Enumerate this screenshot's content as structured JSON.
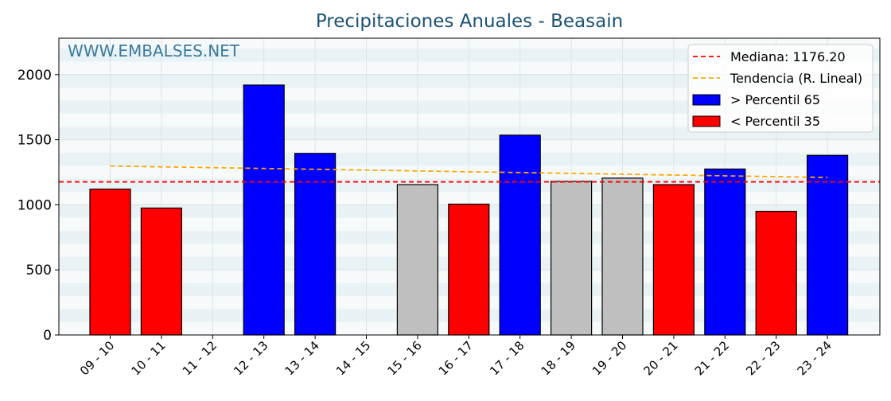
{
  "chart_data": {
    "type": "bar",
    "title": "Precipitaciones Anuales - Beasain",
    "watermark": "WWW.EMBALSES.NET",
    "xlabel": "",
    "ylabel": "",
    "ylim": [
      0,
      2280
    ],
    "yticks": [
      0,
      500,
      1000,
      1500,
      2000
    ],
    "grid": true,
    "legend_position": "top-right",
    "categories": [
      "09 - 10",
      "10 - 11",
      "11 - 12",
      "12 - 13",
      "13 - 14",
      "14 - 15",
      "15 - 16",
      "16 - 17",
      "17 - 18",
      "18 - 19",
      "19 - 20",
      "20 - 21",
      "21 - 22",
      "22 - 23",
      "23 - 24"
    ],
    "values": [
      1120,
      975,
      null,
      1920,
      1395,
      null,
      1155,
      1005,
      1535,
      1180,
      1205,
      1155,
      1275,
      950,
      1380
    ],
    "bar_classes": [
      "low",
      "low",
      "none",
      "high",
      "high",
      "none",
      "mid",
      "low",
      "high",
      "mid",
      "mid",
      "low",
      "high",
      "low",
      "high"
    ],
    "class_colors": {
      "high": "#0000ff",
      "low": "#ff0000",
      "mid": "#bfbfbf"
    },
    "median": 1176.2,
    "trend": {
      "start": 1298,
      "end": 1210
    },
    "legend": [
      {
        "label": "Mediana: 1176.20",
        "kind": "dashed",
        "color": "#ff0000"
      },
      {
        "label": "Tendencia (R. Lineal)",
        "kind": "dashed",
        "color": "#ffa500"
      },
      {
        "label": " > Percentil 65",
        "kind": "box",
        "color": "#0000ff"
      },
      {
        "label": " < Percentil 35",
        "kind": "box",
        "color": "#ff0000"
      }
    ]
  }
}
